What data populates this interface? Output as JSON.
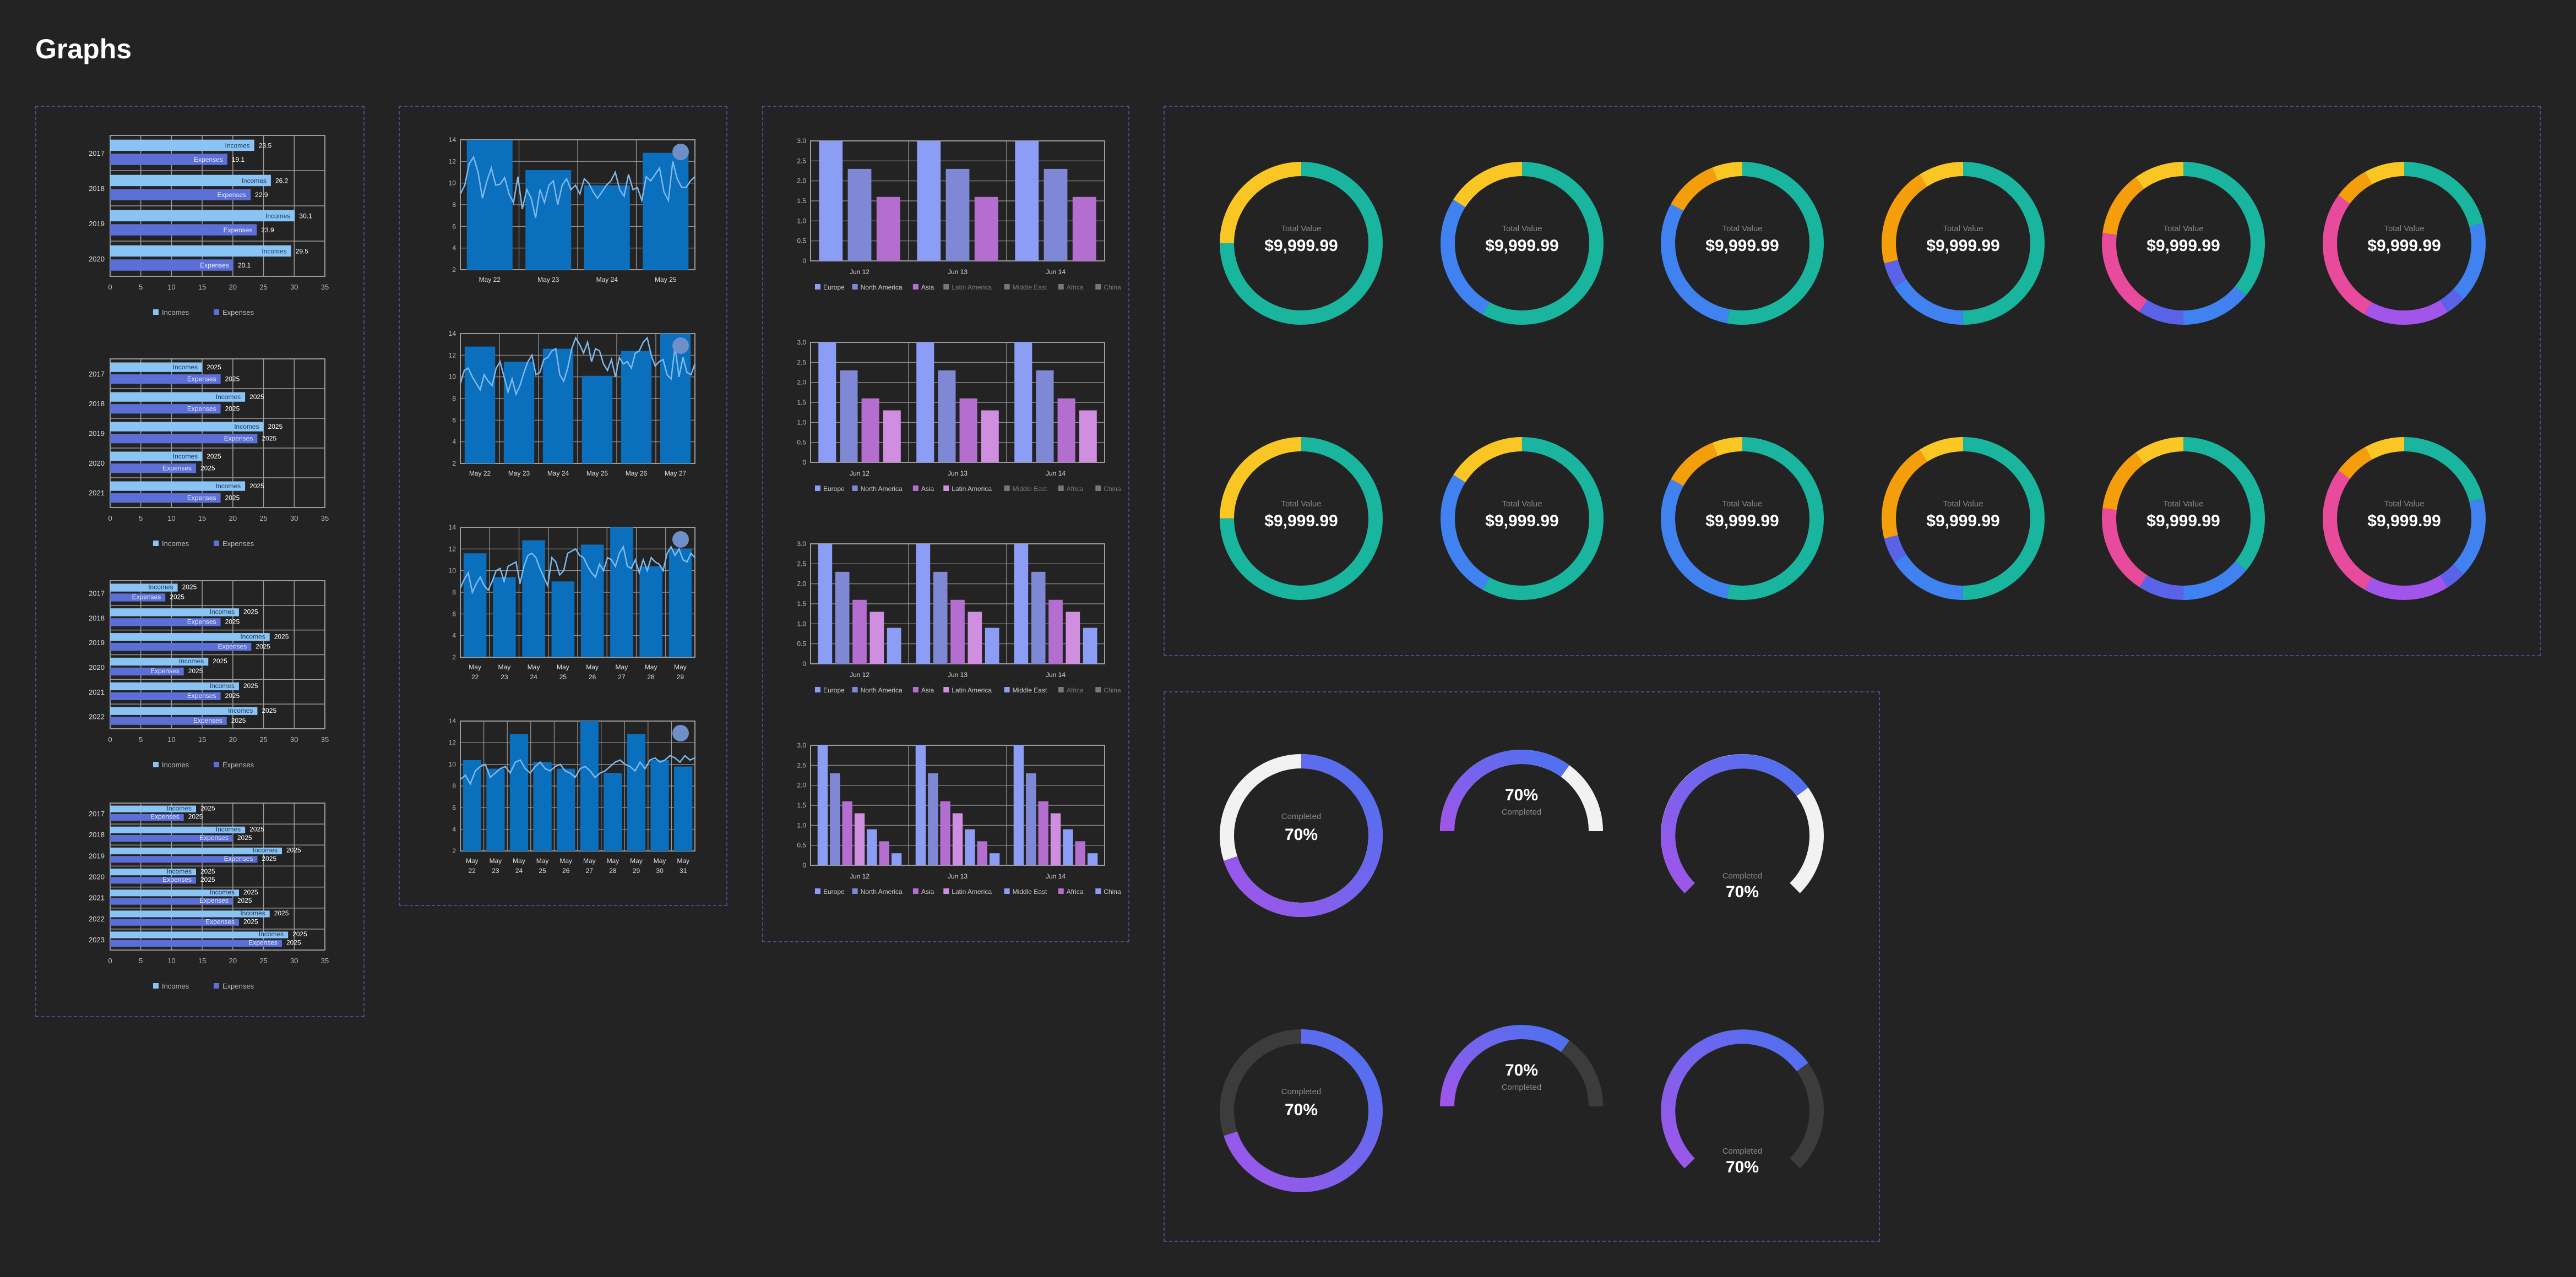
{
  "page": {
    "title": "Graphs"
  },
  "colors": {
    "income": "#89c4f4",
    "expense": "#5b6fd6",
    "bar_blue": "#0a6fbd",
    "line_light": "#7fb8ea",
    "marker": "#6f8fc8",
    "europe": "#8c9df5",
    "north_america": "#7f88d4",
    "asia": "#b46ecf",
    "latin_america": "#cf8ee0",
    "middle_east": "#8c9df5",
    "africa": "#b46ecf",
    "china": "#8c9df5",
    "teal": "#1ab59f",
    "yellow": "#f9c623",
    "blue": "#3f82f0",
    "orange": "#f59e0b",
    "pink": "#e84a9c",
    "purple": "#a155ea",
    "indigo": "#5a62e8",
    "gauge_blue": "#4a72f0",
    "gauge_purple": "#a155ea",
    "gauge_white": "#f2f2f2",
    "gauge_dark": "#3c3c3c"
  },
  "chart_data": [
    {
      "id": "hbar-1",
      "type": "bar",
      "orientation": "horizontal",
      "categories": [
        "2017",
        "2018",
        "2019",
        "2020"
      ],
      "series": [
        {
          "name": "Incomes",
          "values": [
            23.5,
            26.2,
            30.1,
            29.5
          ]
        },
        {
          "name": "Expenses",
          "values": [
            19.1,
            22.9,
            23.9,
            20.1
          ]
        }
      ],
      "labels": {
        "Incomes": [
          "23.5",
          "26.2",
          "30.1",
          "29.5"
        ],
        "Expenses": [
          "19.1",
          "22.9",
          "23.9",
          "20.1"
        ]
      },
      "xticks": [
        "0",
        "5",
        "10",
        "15",
        "20",
        "25",
        "30",
        "35"
      ],
      "xlim": [
        0,
        35
      ],
      "legend": [
        "Incomes",
        "Expenses"
      ]
    },
    {
      "id": "hbar-2",
      "type": "bar",
      "orientation": "horizontal",
      "categories": [
        "2017",
        "2018",
        "2019",
        "2020",
        "2021"
      ],
      "series": [
        {
          "name": "Incomes",
          "values": [
            15,
            22,
            25,
            15,
            22
          ]
        },
        {
          "name": "Expenses",
          "values": [
            18,
            18,
            24,
            14,
            18
          ]
        }
      ],
      "labels": {
        "Incomes": [
          "2025",
          "2025",
          "2025",
          "2025",
          "2025"
        ],
        "Expenses": [
          "2025",
          "2025",
          "2025",
          "2025",
          "2025"
        ]
      },
      "xticks": [
        "0",
        "5",
        "10",
        "15",
        "20",
        "25",
        "30",
        "35"
      ],
      "xlim": [
        0,
        35
      ],
      "legend": [
        "Incomes",
        "Expenses"
      ]
    },
    {
      "id": "hbar-3",
      "type": "bar",
      "orientation": "horizontal",
      "categories": [
        "2017",
        "2018",
        "2019",
        "2020",
        "2021",
        "2022"
      ],
      "series": [
        {
          "name": "Incomes",
          "values": [
            11,
            21,
            26,
            16,
            21,
            24
          ]
        },
        {
          "name": "Expenses",
          "values": [
            9,
            18,
            23,
            12,
            18,
            19
          ]
        }
      ],
      "labels": {
        "Incomes": [
          "2025",
          "2025",
          "2025",
          "2025",
          "2025",
          "2025"
        ],
        "Expenses": [
          "2025",
          "2025",
          "2025",
          "2025",
          "2025",
          "2025"
        ]
      },
      "xticks": [
        "0",
        "5",
        "10",
        "15",
        "20",
        "25",
        "30",
        "35"
      ],
      "xlim": [
        0,
        35
      ],
      "legend": [
        "Incomes",
        "Expenses"
      ]
    },
    {
      "id": "hbar-4",
      "type": "bar",
      "orientation": "horizontal",
      "categories": [
        "2017",
        "2018",
        "2019",
        "2020",
        "2021",
        "2022",
        "2023"
      ],
      "series": [
        {
          "name": "Incomes",
          "values": [
            14,
            22,
            28,
            14,
            21,
            26,
            29
          ]
        },
        {
          "name": "Expenses",
          "values": [
            12,
            20,
            24,
            14,
            20,
            21,
            28
          ]
        }
      ],
      "labels": {
        "Incomes": [
          "2025",
          "2025",
          "2025",
          "2025",
          "2025",
          "2025",
          "2025"
        ],
        "Expenses": [
          "2025",
          "2025",
          "2025",
          "2025",
          "2025",
          "2025",
          "2025"
        ]
      },
      "xticks": [
        "0",
        "5",
        "10",
        "15",
        "20",
        "25",
        "30",
        "35"
      ],
      "xlim": [
        0,
        35
      ],
      "legend": [
        "Incomes",
        "Expenses"
      ]
    },
    {
      "id": "combo-1",
      "type": "bar",
      "categories": [
        "May 22",
        "May 23",
        "May 24",
        "May 25"
      ],
      "values": [
        14,
        11.2,
        9.8,
        12.8
      ],
      "line": [
        9,
        9.8,
        11.8,
        12.4,
        11,
        8.6,
        10.2,
        11.4,
        9.8,
        9.9,
        10.5,
        9,
        8.2,
        10.6,
        7.6,
        9.4,
        8.6,
        6.8,
        9.4,
        8.2,
        9.8,
        10.2,
        8,
        9.8,
        10.4,
        9.4,
        9.8,
        9,
        10.4,
        10,
        9.2,
        8.6,
        9.2,
        9.8,
        10.2,
        11,
        9.4,
        8.8,
        10.8,
        9.4,
        9.6,
        8.4,
        10.6,
        10.2,
        10.8,
        11.4,
        9.2,
        8.4,
        12,
        10.4,
        9.6,
        9.6,
        10.2,
        10.6
      ],
      "yticks": [
        "2",
        "4",
        "6",
        "8",
        "10",
        "12",
        "14"
      ],
      "ylim": [
        2,
        14
      ]
    },
    {
      "id": "combo-2",
      "type": "bar",
      "categories": [
        "May 22",
        "May 23",
        "May 24",
        "May 25",
        "May 26",
        "May 27"
      ],
      "values": [
        12.8,
        11.4,
        12.6,
        10.1,
        12.4,
        14
      ],
      "line": [
        9.4,
        10.6,
        10.8,
        10,
        9.4,
        8.8,
        10.2,
        9.6,
        9.2,
        10.8,
        11.4,
        10,
        8.6,
        9.8,
        8.4,
        9.2,
        10.4,
        11.4,
        12,
        10.2,
        10.4,
        11.6,
        11.8,
        12.4,
        12.6,
        10.2,
        9.6,
        10.8,
        12.6,
        13.6,
        13,
        12.2,
        13.2,
        11.4,
        12.6,
        12.4,
        11.2,
        10.6,
        11.6,
        10,
        11.8,
        11.2,
        11.4,
        10.8,
        12.2,
        12.4,
        13.2,
        13.6,
        12,
        11,
        11.4,
        11.6,
        10.2,
        9.8,
        12.8,
        10,
        11.8,
        10.4,
        10.2,
        11.2
      ],
      "yticks": [
        "2",
        "4",
        "6",
        "8",
        "10",
        "12",
        "14"
      ],
      "ylim": [
        2,
        14
      ]
    },
    {
      "id": "combo-3",
      "type": "bar",
      "categories": [
        [
          "May",
          "22"
        ],
        [
          "May",
          "23"
        ],
        [
          "May",
          "24"
        ],
        [
          "May",
          "25"
        ],
        [
          "May",
          "26"
        ],
        [
          "May",
          "27"
        ],
        [
          "May",
          "28"
        ],
        [
          "May",
          "29"
        ]
      ],
      "values": [
        11.6,
        9.4,
        12.8,
        9,
        12.4,
        14,
        10.4,
        12
      ],
      "line": [
        8.4,
        9.2,
        9.8,
        8,
        8.8,
        9.4,
        8.6,
        8.2,
        9,
        10,
        10.2,
        9,
        10.4,
        10.6,
        10.8,
        8.8,
        10.4,
        11.4,
        11.6,
        11.2,
        10.2,
        9.4,
        8.6,
        11.2,
        10.8,
        9.6,
        10,
        11.6,
        11.8,
        12,
        11.4,
        11.2,
        10.4,
        9.8,
        9.4,
        10.6,
        10,
        11.2,
        11,
        10.4,
        11.6,
        12.2,
        10.4,
        10.2,
        11,
        9.8,
        11,
        10,
        11.2,
        10.8,
        10.6,
        10,
        11.6,
        12.2,
        11.4,
        12,
        11,
        10.8,
        11.6,
        11.2
      ],
      "yticks": [
        "2",
        "4",
        "6",
        "8",
        "10",
        "12",
        "14"
      ],
      "ylim": [
        2,
        14
      ]
    },
    {
      "id": "combo-4",
      "type": "bar",
      "categories": [
        [
          "May",
          "22"
        ],
        [
          "May",
          "23"
        ],
        [
          "May",
          "24"
        ],
        [
          "May",
          "25"
        ],
        [
          "May",
          "26"
        ],
        [
          "May",
          "27"
        ],
        [
          "May",
          "28"
        ],
        [
          "May",
          "29"
        ],
        [
          "May",
          "30"
        ],
        [
          "May",
          "31"
        ]
      ],
      "values": [
        10.4,
        9.6,
        12.8,
        10.2,
        9.6,
        14,
        9.2,
        12.8,
        10.4,
        9.8
      ],
      "line": [
        8.6,
        9,
        8.2,
        9.4,
        9.8,
        10,
        8.8,
        9.2,
        9.6,
        9.8,
        9.2,
        10.2,
        10.4,
        9.6,
        9.2,
        9.8,
        10.2,
        9.6,
        9.4,
        9.8,
        10,
        9.4,
        9.2,
        8.8,
        9.6,
        9.8,
        9.4,
        8.8,
        9.2,
        9.4,
        9.8,
        10.2,
        10.4,
        10,
        9.8,
        9.4,
        10.2,
        9.6,
        10.4,
        10.6,
        10.2,
        10.4,
        10.8,
        10.6,
        10.2,
        10.8,
        10.4,
        10.6
      ],
      "yticks": [
        "2",
        "4",
        "6",
        "8",
        "10",
        "12",
        "14"
      ],
      "ylim": [
        2,
        14
      ]
    },
    {
      "id": "group-1",
      "type": "bar",
      "categories": [
        "Jun 12",
        "Jun 13",
        "Jun 14"
      ],
      "series": [
        {
          "name": "Europe",
          "values": [
            3,
            3,
            3
          ]
        },
        {
          "name": "North America",
          "values": [
            2.3,
            2.3,
            2.3
          ]
        },
        {
          "name": "Asia",
          "values": [
            1.6,
            1.6,
            1.6
          ]
        }
      ],
      "legend": [
        "Europe",
        "North America",
        "Asia",
        "Latin America",
        "Middle East",
        "Africa",
        "China"
      ],
      "legend_active": 3,
      "yticks": [
        "0",
        "0.5",
        "1.0",
        "1.5",
        "2.0",
        "2.5",
        "3.0"
      ],
      "ylim": [
        0,
        3
      ]
    },
    {
      "id": "group-2",
      "type": "bar",
      "categories": [
        "Jun 12",
        "Jun 13",
        "Jun 14"
      ],
      "series": [
        {
          "name": "Europe",
          "values": [
            3,
            3,
            3
          ]
        },
        {
          "name": "North America",
          "values": [
            2.3,
            2.3,
            2.3
          ]
        },
        {
          "name": "Asia",
          "values": [
            1.6,
            1.6,
            1.6
          ]
        },
        {
          "name": "Latin America",
          "values": [
            1.3,
            1.3,
            1.3
          ]
        }
      ],
      "legend": [
        "Europe",
        "North America",
        "Asia",
        "Latin America",
        "Middle East",
        "Africa",
        "China"
      ],
      "legend_active": 4,
      "yticks": [
        "0",
        "0.5",
        "1.0",
        "1.5",
        "2.0",
        "2.5",
        "3.0"
      ],
      "ylim": [
        0,
        3
      ]
    },
    {
      "id": "group-3",
      "type": "bar",
      "categories": [
        "Jun 12",
        "Jun 13",
        "Jun 14"
      ],
      "series": [
        {
          "name": "Europe",
          "values": [
            3,
            3,
            3
          ]
        },
        {
          "name": "North America",
          "values": [
            2.3,
            2.3,
            2.3
          ]
        },
        {
          "name": "Asia",
          "values": [
            1.6,
            1.6,
            1.6
          ]
        },
        {
          "name": "Latin America",
          "values": [
            1.3,
            1.3,
            1.3
          ]
        },
        {
          "name": "Middle East",
          "values": [
            0.9,
            0.9,
            0.9
          ]
        }
      ],
      "legend": [
        "Europe",
        "North America",
        "Asia",
        "Latin America",
        "Middle East",
        "Africa",
        "China"
      ],
      "legend_active": 5,
      "yticks": [
        "0",
        "0.5",
        "1.0",
        "1.5",
        "2.0",
        "2.5",
        "3.0"
      ],
      "ylim": [
        0,
        3
      ]
    },
    {
      "id": "group-4",
      "type": "bar",
      "categories": [
        "Jun 12",
        "Jun 13",
        "Jun 14"
      ],
      "series": [
        {
          "name": "Europe",
          "values": [
            3,
            3,
            3
          ]
        },
        {
          "name": "North America",
          "values": [
            2.3,
            2.3,
            2.3
          ]
        },
        {
          "name": "Asia",
          "values": [
            1.6,
            1.6,
            1.6
          ]
        },
        {
          "name": "Latin America",
          "values": [
            1.3,
            1.3,
            1.3
          ]
        },
        {
          "name": "Middle East",
          "values": [
            0.9,
            0.9,
            0.9
          ]
        },
        {
          "name": "Africa",
          "values": [
            0.6,
            0.6,
            0.6
          ]
        },
        {
          "name": "China",
          "values": [
            0.3,
            0.3,
            0.3
          ]
        }
      ],
      "legend": [
        "Europe",
        "North America",
        "Asia",
        "Latin America",
        "Middle East",
        "Africa",
        "China"
      ],
      "legend_active": 7,
      "yticks": [
        "0",
        "0.5",
        "1.0",
        "1.5",
        "2.0",
        "2.5",
        "3.0"
      ],
      "ylim": [
        0,
        3
      ]
    },
    {
      "id": "donuts",
      "type": "pie",
      "label": "Total Value",
      "value": "$9,999.99",
      "variants": [
        [
          {
            "color": "teal",
            "value": 75
          },
          {
            "color": "yellow",
            "value": 25
          }
        ],
        [
          {
            "color": "teal",
            "value": 58
          },
          {
            "color": "blue",
            "value": 26
          },
          {
            "color": "yellow",
            "value": 16
          }
        ],
        [
          {
            "color": "teal",
            "value": 53
          },
          {
            "color": "blue",
            "value": 30
          },
          {
            "color": "orange",
            "value": 11
          },
          {
            "color": "yellow",
            "value": 6
          }
        ],
        [
          {
            "color": "teal",
            "value": 50
          },
          {
            "color": "blue",
            "value": 16
          },
          {
            "color": "indigo",
            "value": 5
          },
          {
            "color": "orange",
            "value": 20
          },
          {
            "color": "yellow",
            "value": 9
          }
        ],
        [
          {
            "color": "teal",
            "value": 36
          },
          {
            "color": "blue",
            "value": 14
          },
          {
            "color": "indigo",
            "value": 9
          },
          {
            "color": "pink",
            "value": 18
          },
          {
            "color": "orange",
            "value": 13
          },
          {
            "color": "yellow",
            "value": 10
          }
        ],
        [
          {
            "color": "teal",
            "value": 21
          },
          {
            "color": "blue",
            "value": 16
          },
          {
            "color": "indigo",
            "value": 4
          },
          {
            "color": "purple",
            "value": 17
          },
          {
            "color": "pink",
            "value": 27
          },
          {
            "color": "orange",
            "value": 7
          },
          {
            "color": "yellow",
            "value": 8
          }
        ]
      ]
    },
    {
      "id": "gauges",
      "type": "pie",
      "label": "Completed",
      "value": "70%",
      "percent": 70
    }
  ]
}
